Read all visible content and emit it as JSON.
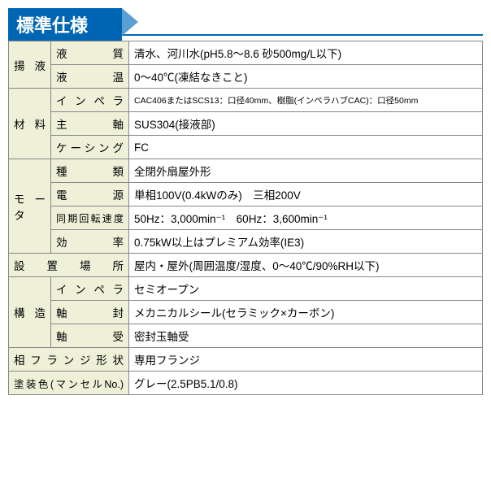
{
  "header_title": "標準仕様",
  "colors": {
    "header_bg": "#0066b3",
    "header_text": "#ffffff",
    "header_tail": "#5a9fd4",
    "cell_label_bg": "#eef0d8",
    "cell_value_bg": "#ffffff",
    "border": "#888888"
  },
  "rows": {
    "r1_cat": "揚液",
    "r1_sub": "液質",
    "r1_val": "清水、河川水(pH5.8〜8.6 砂500mg/L以下)",
    "r2_sub": "液温",
    "r2_val": "0〜40℃(凍結なきこと)",
    "r3_cat": "材料",
    "r3_sub": "インペラ",
    "r3_val": "CAC406またはSCS13：口径40mm、樹脂(インペラハブCAC)：口径50mm",
    "r4_sub": "主軸",
    "r4_val": "SUS304(接液部)",
    "r5_sub": "ケーシング",
    "r5_val": "FC",
    "r6_cat": "モータ",
    "r6_sub": "種類",
    "r6_val": "全閉外扇屋外形",
    "r7_sub": "電源",
    "r7_val": "単相100V(0.4kWのみ)　三相200V",
    "r8_sub": "同期回転速度",
    "r8_val": "50Hz：3,000min⁻¹　60Hz：3,600min⁻¹",
    "r9_sub": "効率",
    "r9_val": "0.75kW以上はプレミアム効率(IE3)",
    "r10_cat": "設置場所",
    "r10_val": "屋内・屋外(周囲温度/湿度、0〜40℃/90%RH以下)",
    "r11_cat": "構造",
    "r11_sub": "インペラ",
    "r11_val": "セミオープン",
    "r12_sub": "軸封",
    "r12_val": "メカニカルシール(セラミック×カーボン)",
    "r13_sub": "軸受",
    "r13_val": "密封玉軸受",
    "r14_cat": "相フランジ形状",
    "r14_val": "専用フランジ",
    "r15_cat": "塗装色(マンセルNo.)",
    "r15_val": "グレー(2.5PB5.1/0.8)"
  }
}
